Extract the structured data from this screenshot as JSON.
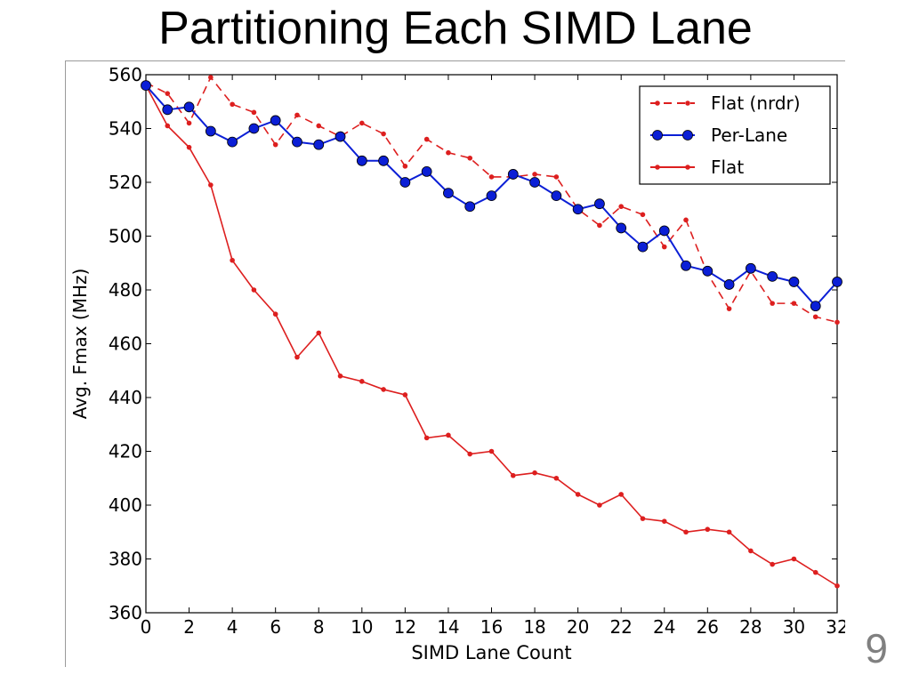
{
  "slide": {
    "title": "Partitioning Each SIMD Lane",
    "page_number": "9"
  },
  "chart_data": {
    "type": "line",
    "xlabel": "SIMD Lane Count",
    "ylabel": "Avg. Fmax (MHz)",
    "xlim": [
      0,
      32
    ],
    "ylim": [
      360,
      560
    ],
    "x_ticks": [
      "0",
      "2",
      "4",
      "6",
      "8",
      "10",
      "12",
      "14",
      "16",
      "18",
      "20",
      "22",
      "24",
      "26",
      "28",
      "30",
      "32"
    ],
    "y_ticks": [
      "360",
      "380",
      "400",
      "420",
      "440",
      "460",
      "480",
      "500",
      "520",
      "540",
      "560"
    ],
    "grid": false,
    "legend_position": "top-right",
    "x": [
      0,
      1,
      2,
      3,
      4,
      5,
      6,
      7,
      8,
      9,
      10,
      11,
      12,
      13,
      14,
      15,
      16,
      17,
      18,
      19,
      20,
      21,
      22,
      23,
      24,
      25,
      26,
      27,
      28,
      29,
      30,
      31,
      32
    ],
    "series": [
      {
        "name": "Flat (nrdr)",
        "color": "#dd1f1f",
        "style": "dashed",
        "marker": "small-dot",
        "values": [
          557,
          553,
          542,
          559,
          549,
          546,
          534,
          545,
          541,
          537,
          542,
          538,
          526,
          536,
          531,
          529,
          522,
          522,
          523,
          522,
          510,
          504,
          511,
          508,
          496,
          506,
          486,
          473,
          487,
          475,
          475,
          470,
          468
        ]
      },
      {
        "name": "Per-Lane",
        "color": "#0b1fd6",
        "style": "solid",
        "marker": "large-dot",
        "values": [
          556,
          547,
          548,
          539,
          535,
          540,
          543,
          535,
          534,
          537,
          528,
          528,
          520,
          524,
          516,
          511,
          515,
          523,
          520,
          515,
          510,
          512,
          503,
          496,
          502,
          489,
          487,
          482,
          488,
          485,
          483,
          474,
          483
        ]
      },
      {
        "name": "Flat",
        "color": "#dd1f1f",
        "style": "solid",
        "marker": "small-dot",
        "values": [
          556,
          541,
          533,
          519,
          491,
          480,
          471,
          455,
          464,
          448,
          446,
          443,
          441,
          425,
          426,
          419,
          420,
          411,
          412,
          410,
          404,
          400,
          404,
          395,
          394,
          390,
          391,
          390,
          383,
          378,
          380,
          375,
          370
        ]
      }
    ]
  }
}
